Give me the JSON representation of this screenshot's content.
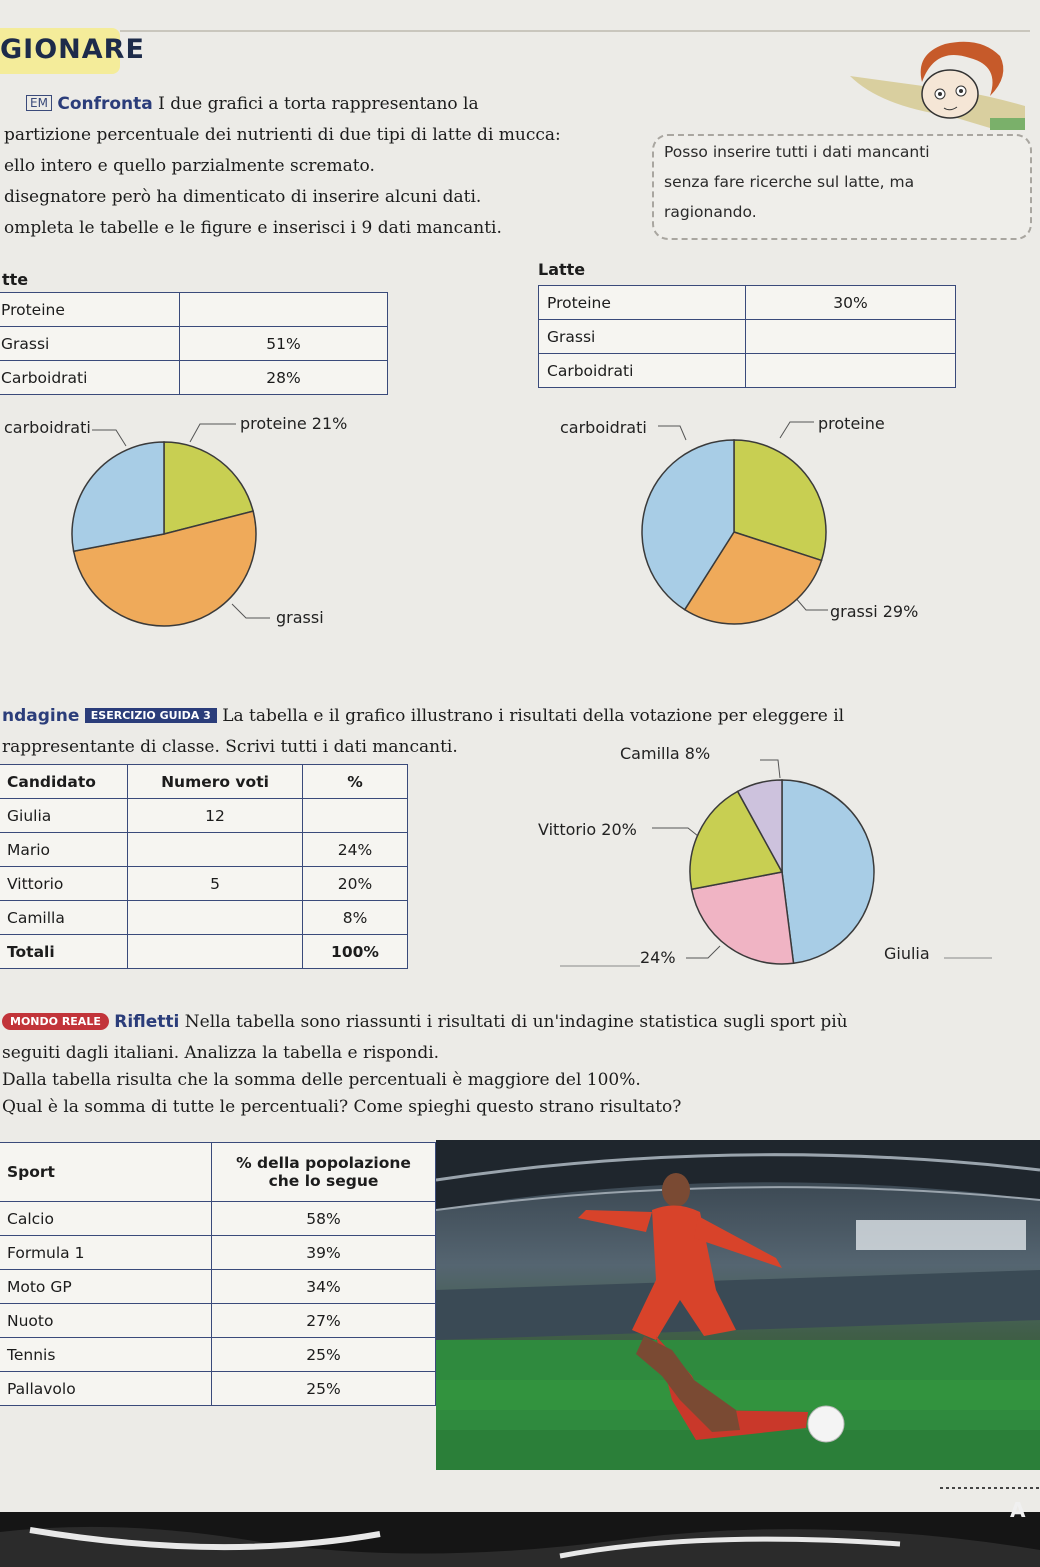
{
  "header": {
    "title": "GIONARE"
  },
  "exercise1": {
    "tag": "EM",
    "title": "Confronta",
    "lines": [
      "I due grafici a torta rappresentano la",
      "partizione percentuale dei nutrienti di due tipi di latte di mucca:",
      "ello intero e quello parzialmente scremato.",
      "disegnatore però ha dimenticato di inserire alcuni dati.",
      "ompleta le tabelle e le figure e inserisci i 9 dati mancanti."
    ],
    "bubble": [
      "Posso inserire tutti i dati mancanti",
      "senza fare ricerche sul latte, ma",
      "ragionando."
    ]
  },
  "milk_left": {
    "title": "tte",
    "rows": [
      {
        "label": "Proteine",
        "value": ""
      },
      {
        "label": "Grassi",
        "value": "51%"
      },
      {
        "label": "Carboidrati",
        "value": "28%"
      }
    ],
    "pie_labels": {
      "carb": "carboidrati",
      "prot": "proteine 21%",
      "fat": "grassi"
    }
  },
  "milk_right": {
    "title": "Latte",
    "rows": [
      {
        "label": "Proteine",
        "value": "30%"
      },
      {
        "label": "Grassi",
        "value": ""
      },
      {
        "label": "Carboidrati",
        "value": ""
      }
    ],
    "pie_labels": {
      "carb": "carboidrati",
      "prot": "proteine",
      "fat": "grassi 29%"
    }
  },
  "exercise2": {
    "line1_pre": "ndagine",
    "guida": "ESERCIZIO GUIDA 3",
    "line1_post": "La tabella e il grafico illustrano i risultati della votazione per eleggere il",
    "line2": "rappresentante di classe. Scrivi tutti i dati mancanti.",
    "table_headers": [
      "Candidato",
      "Numero voti",
      "%"
    ],
    "table_rows": [
      [
        "Giulia",
        "12",
        ""
      ],
      [
        "Mario",
        "",
        "24%"
      ],
      [
        "Vittorio",
        "5",
        "20%"
      ],
      [
        "Camilla",
        "",
        "8%"
      ],
      [
        "Totali",
        "",
        "100%"
      ]
    ],
    "pie_labels": {
      "camilla": "Camilla 8%",
      "vittorio": "Vittorio 20%",
      "mario": "24%",
      "giulia": "Giulia"
    }
  },
  "exercise3": {
    "tag": "MONDO REALE",
    "title": "Rifletti",
    "line1": "Nella tabella sono riassunti i risultati di un'indagine statistica sugli sport più",
    "line2": "seguiti dagli italiani. Analizza la tabella e rispondi.",
    "line3": "Dalla tabella risulta che la somma delle percentuali è maggiore del 100%.",
    "line4": "Qual è la somma di tutte le percentuali? Come spieghi questo strano risultato?",
    "table_headers": [
      "Sport",
      "% della popolazione",
      "che lo segue"
    ],
    "table_rows": [
      [
        "Calcio",
        "58%"
      ],
      [
        "Formula 1",
        "39%"
      ],
      [
        "Moto GP",
        "34%"
      ],
      [
        "Nuoto",
        "27%"
      ],
      [
        "Tennis",
        "25%"
      ],
      [
        "Pallavolo",
        "25%"
      ]
    ]
  },
  "footer": {
    "corner_letter": "A"
  },
  "chart_data": [
    {
      "type": "pie",
      "title": "",
      "categories": [
        "proteine",
        "grassi",
        "carboidrati"
      ],
      "values": [
        21,
        51,
        28
      ],
      "colors": [
        "#c8cf52",
        "#efaa5a",
        "#a8cde6"
      ]
    },
    {
      "type": "pie",
      "title": "",
      "categories": [
        "proteine",
        "grassi",
        "carboidrati"
      ],
      "values": [
        30,
        29,
        41
      ],
      "colors": [
        "#c8cf52",
        "#efaa5a",
        "#a8cde6"
      ]
    },
    {
      "type": "pie",
      "title": "",
      "categories": [
        "Giulia",
        "Mario",
        "Vittorio",
        "Camilla"
      ],
      "values": [
        48,
        24,
        20,
        8
      ],
      "colors": [
        "#a8cde6",
        "#f0b4c4",
        "#c8cf52",
        "#cdc2dd"
      ]
    }
  ]
}
